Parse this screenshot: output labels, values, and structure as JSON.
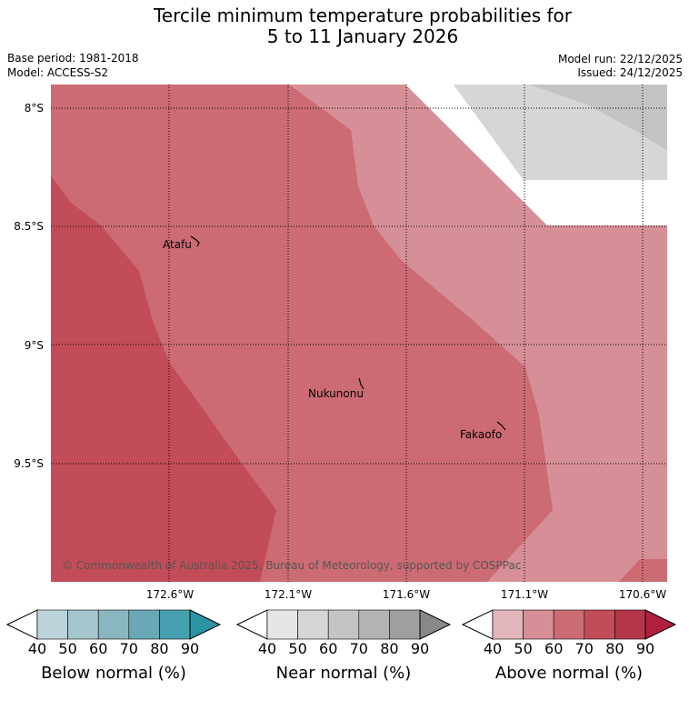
{
  "header": {
    "title_line1": "Tercile minimum temperature probabilities for",
    "title_line2": "5 to 11 January 2026",
    "base_period": "Base period: 1981-2018",
    "model": "Model: ACCESS-S2",
    "model_run": "Model run: 22/12/2025",
    "issued": "Issued: 24/12/2025"
  },
  "map": {
    "latitude_labels": [
      "8°S",
      "8.5°S",
      "9°S",
      "9.5°S"
    ],
    "longitude_labels": [
      "172.6°W",
      "172.1°W",
      "171.6°W",
      "171.1°W",
      "170.6°W"
    ],
    "places": [
      {
        "name": "Atafu",
        "lon": -172.5,
        "lat": -8.55
      },
      {
        "name": "Nukunonu",
        "lon": -171.85,
        "lat": -9.17
      },
      {
        "name": "Fakaofo",
        "lon": -171.25,
        "lat": -9.35
      }
    ],
    "attribution": "© Commonwealth of Australia 2025, Bureau of Meteorology, supported by COSPPac",
    "colors": {
      "above_50_60": "#d68f96",
      "above_60_70": "#cc6b74",
      "above_70_80": "#c24c58",
      "near_50_60": "#d6d6d6",
      "near_60_70": "#c4c4c4",
      "no_signal": "#ffffff"
    }
  },
  "colorbars": [
    {
      "title": "Below normal (%)",
      "ticks": [
        "40",
        "50",
        "60",
        "70",
        "80",
        "90"
      ],
      "colors": [
        "#ffffff",
        "#bcd3da",
        "#a6c6cd",
        "#8ab6c0",
        "#6aa8b5",
        "#47a0b0",
        "#2b93a3"
      ]
    },
    {
      "title": "Near normal (%)",
      "ticks": [
        "40",
        "50",
        "60",
        "70",
        "80",
        "90"
      ],
      "colors": [
        "#ffffff",
        "#e6e6e6",
        "#d6d6d6",
        "#c4c4c4",
        "#b3b3b3",
        "#9f9f9f",
        "#888888"
      ]
    },
    {
      "title": "Above normal (%)",
      "ticks": [
        "40",
        "50",
        "60",
        "70",
        "80",
        "90"
      ],
      "colors": [
        "#ffffff",
        "#e2b6bc",
        "#d68f96",
        "#cc6b74",
        "#c24c58",
        "#b5364a",
        "#b0203e"
      ]
    }
  ]
}
